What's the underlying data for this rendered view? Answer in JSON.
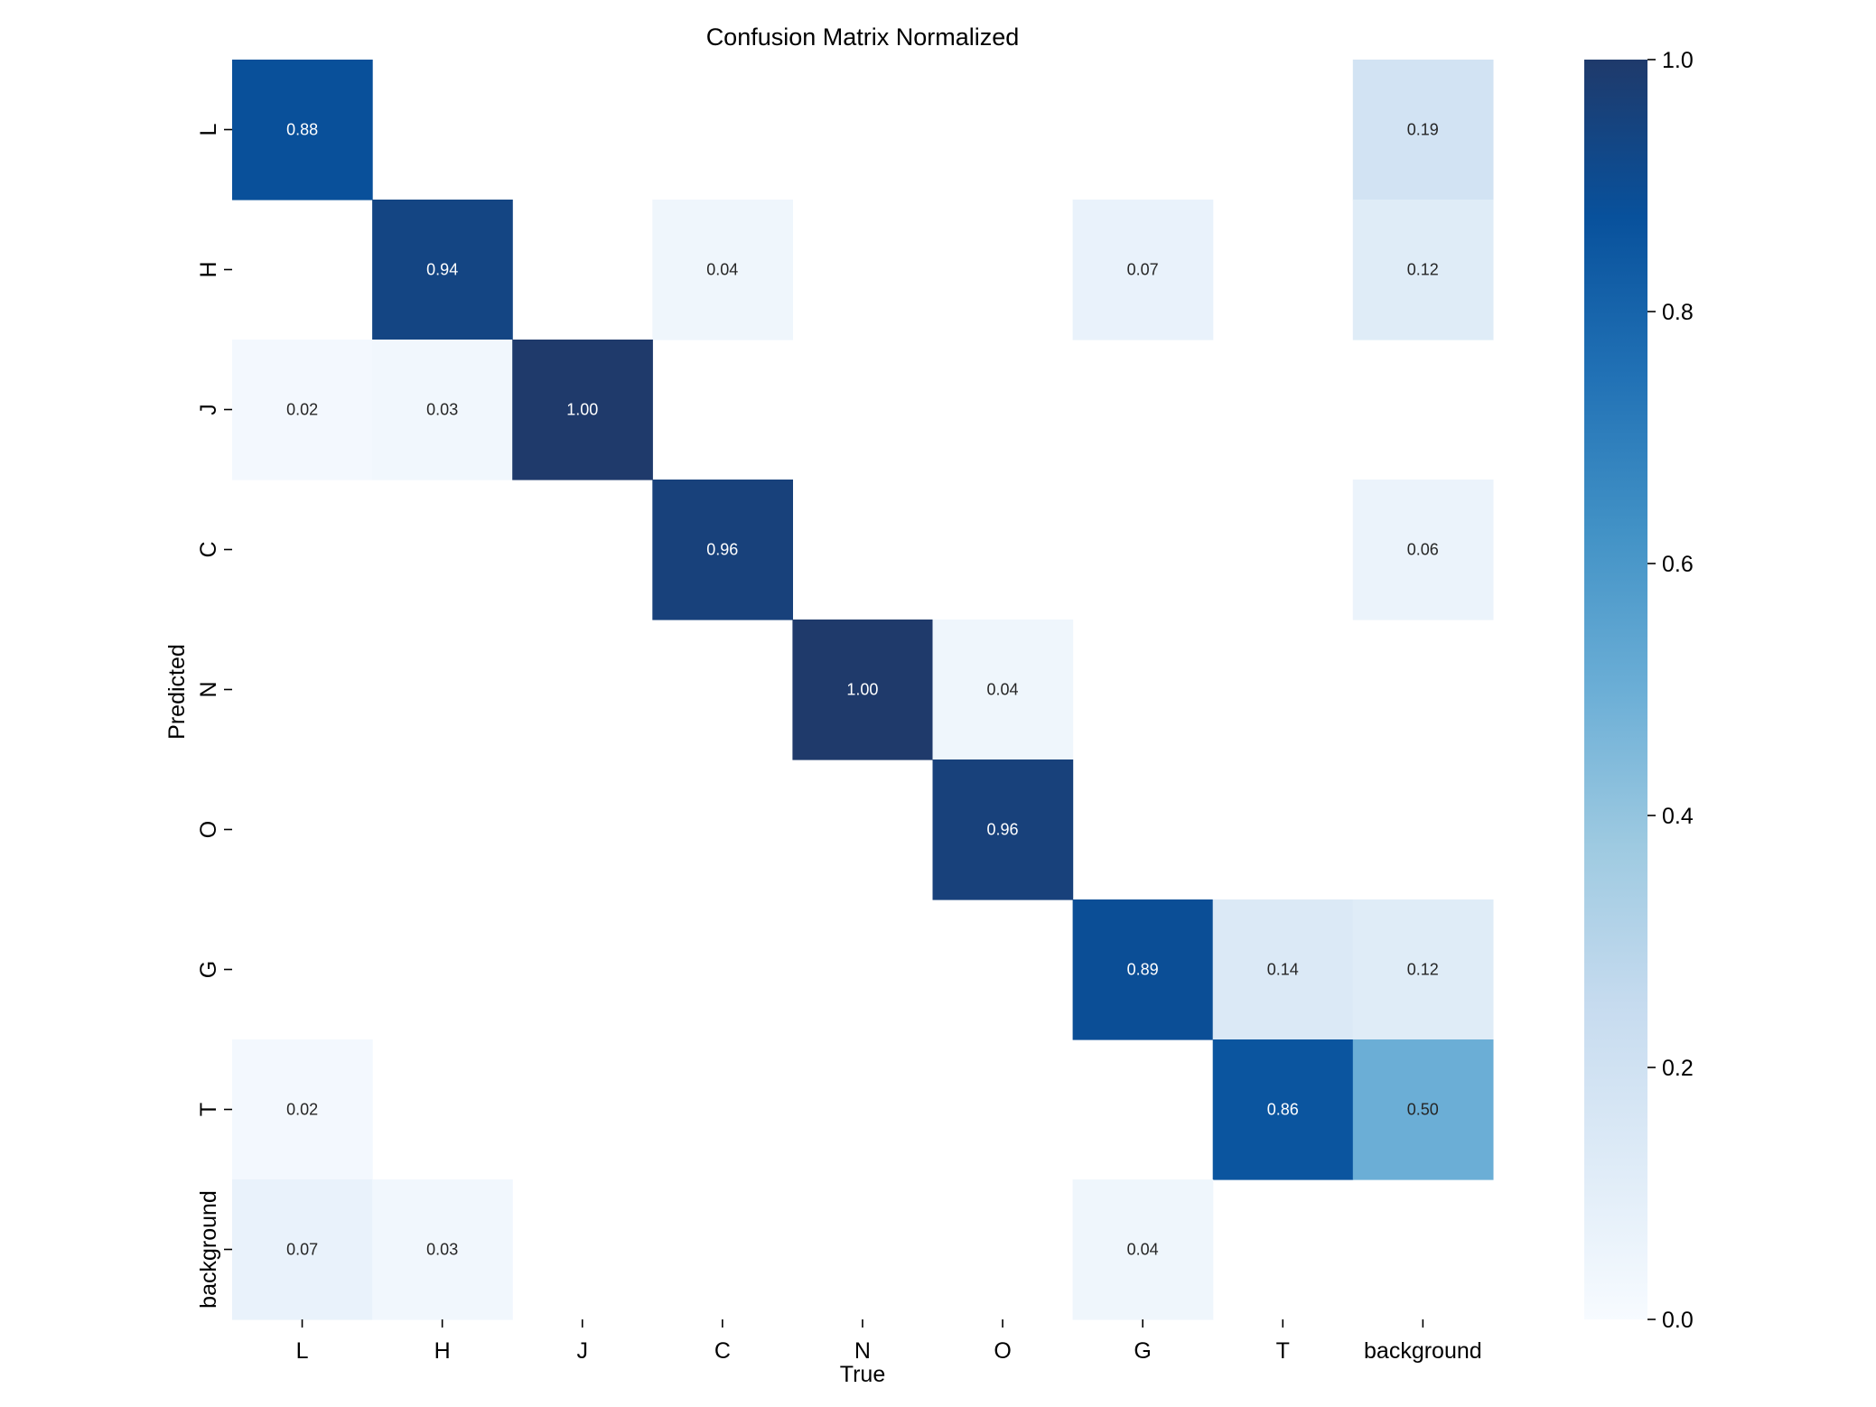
{
  "chart_data": {
    "type": "heatmap",
    "title": "Confusion Matrix Normalized",
    "xlabel": "True",
    "ylabel": "Predicted",
    "x_categories": [
      "L",
      "H",
      "J",
      "C",
      "N",
      "O",
      "G",
      "T",
      "background"
    ],
    "y_categories": [
      "L",
      "H",
      "J",
      "C",
      "N",
      "O",
      "G",
      "T",
      "background"
    ],
    "values": [
      [
        0.88,
        null,
        null,
        null,
        null,
        null,
        null,
        null,
        0.19
      ],
      [
        null,
        0.94,
        null,
        0.04,
        null,
        null,
        0.07,
        null,
        0.12
      ],
      [
        0.02,
        0.03,
        1.0,
        null,
        null,
        null,
        null,
        null,
        null
      ],
      [
        null,
        null,
        null,
        0.96,
        null,
        null,
        null,
        null,
        0.06
      ],
      [
        null,
        null,
        null,
        null,
        1.0,
        0.04,
        null,
        null,
        null
      ],
      [
        null,
        null,
        null,
        null,
        null,
        0.96,
        null,
        null,
        null
      ],
      [
        null,
        null,
        null,
        null,
        null,
        null,
        0.89,
        0.14,
        0.12
      ],
      [
        0.02,
        null,
        null,
        null,
        null,
        null,
        null,
        0.86,
        0.5
      ],
      [
        0.07,
        0.03,
        null,
        null,
        null,
        null,
        0.04,
        null,
        null
      ]
    ],
    "annotation_format": "0.00",
    "colormap": "Blues",
    "colormap_stops": [
      "#f7fbff",
      "#deebf7",
      "#c6dbef",
      "#9ecae1",
      "#6baed6",
      "#4292c6",
      "#2171b5",
      "#08519c",
      "#1f3a6b"
    ],
    "colorbar": {
      "range": [
        0.0,
        1.0
      ],
      "ticks": [
        0.0,
        0.2,
        0.4,
        0.6,
        0.8,
        1.0
      ],
      "tick_labels": [
        "0.0",
        "0.2",
        "0.4",
        "0.6",
        "0.8",
        "1.0"
      ]
    },
    "grid": false
  }
}
